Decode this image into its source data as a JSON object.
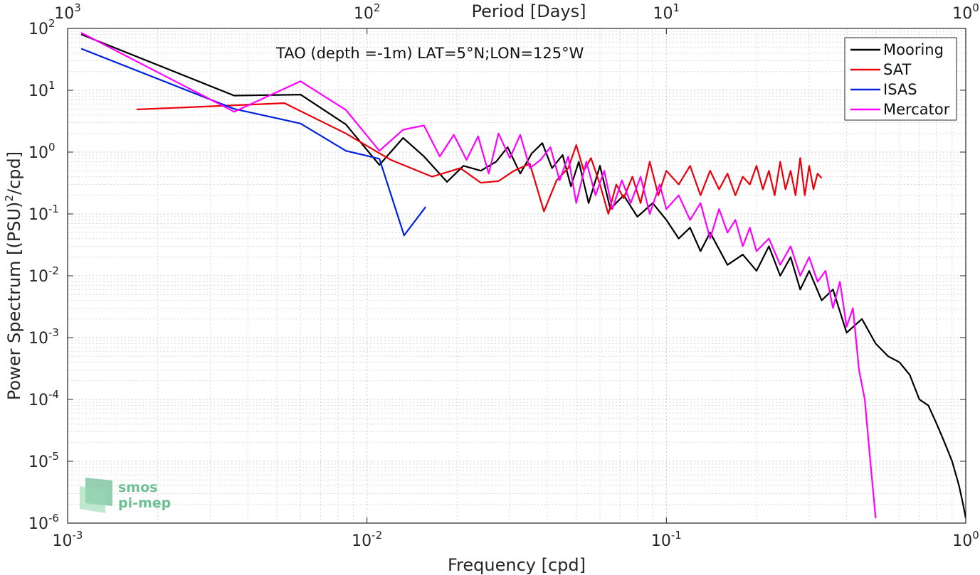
{
  "chart_data": {
    "type": "line",
    "annotation": "TAO (depth =-1m) LAT=5°N;LON=125°W",
    "xlabel": "Frequency [cpd]",
    "ylabel": "Power Spectrum [(PSU)",
    "ylabel_sup": "2",
    "ylabel_tail": "/cpd]",
    "top_xlabel": "Period [Days]",
    "x_scale": "log",
    "y_scale": "log",
    "xlim": [
      0.001,
      1
    ],
    "ylim": [
      1e-06,
      100
    ],
    "grid": true,
    "legend_position": "top-right",
    "x_ticks": [
      {
        "value": 0.001,
        "base": "10",
        "exp": "-3"
      },
      {
        "value": 0.01,
        "base": "10",
        "exp": "-2"
      },
      {
        "value": 0.1,
        "base": "10",
        "exp": "-1"
      },
      {
        "value": 1,
        "base": "10",
        "exp": "0"
      }
    ],
    "y_ticks": [
      {
        "value": 100,
        "base": "10",
        "exp": "2"
      },
      {
        "value": 10,
        "base": "10",
        "exp": "1"
      },
      {
        "value": 1,
        "base": "10",
        "exp": "0"
      },
      {
        "value": 0.1,
        "base": "10",
        "exp": "-1"
      },
      {
        "value": 0.01,
        "base": "10",
        "exp": "-2"
      },
      {
        "value": 0.001,
        "base": "10",
        "exp": "-3"
      },
      {
        "value": 0.0001,
        "base": "10",
        "exp": "-4"
      },
      {
        "value": 1e-05,
        "base": "10",
        "exp": "-5"
      },
      {
        "value": 1e-06,
        "base": "10",
        "exp": "-6"
      }
    ],
    "top_ticks": [
      {
        "freq": 0.001,
        "base": "10",
        "exp": "3"
      },
      {
        "freq": 0.01,
        "base": "10",
        "exp": "2"
      },
      {
        "freq": 0.1,
        "base": "10",
        "exp": "1"
      },
      {
        "freq": 1,
        "base": "10",
        "exp": "0"
      }
    ],
    "series": [
      {
        "name": "Mooring",
        "color": "#000000",
        "x": [
          0.00111,
          0.0036,
          0.006,
          0.0085,
          0.011,
          0.0132,
          0.0155,
          0.0185,
          0.021,
          0.024,
          0.027,
          0.0295,
          0.0325,
          0.0355,
          0.0385,
          0.0415,
          0.045,
          0.048,
          0.051,
          0.055,
          0.06,
          0.065,
          0.072,
          0.08,
          0.09,
          0.1,
          0.11,
          0.12,
          0.13,
          0.14,
          0.16,
          0.18,
          0.2,
          0.22,
          0.24,
          0.26,
          0.28,
          0.3,
          0.33,
          0.36,
          0.4,
          0.45,
          0.5,
          0.55,
          0.6,
          0.65,
          0.7,
          0.75,
          0.8,
          0.85,
          0.9,
          0.95,
          0.98,
          1.0
        ],
        "y": [
          80,
          8.2,
          8.5,
          2.8,
          0.62,
          1.7,
          0.85,
          0.33,
          0.6,
          0.5,
          0.7,
          1.2,
          0.45,
          0.95,
          1.4,
          0.55,
          0.9,
          0.28,
          0.7,
          0.15,
          0.6,
          0.12,
          0.2,
          0.09,
          0.15,
          0.08,
          0.04,
          0.06,
          0.025,
          0.05,
          0.015,
          0.022,
          0.012,
          0.03,
          0.01,
          0.02,
          0.006,
          0.012,
          0.004,
          0.006,
          0.0012,
          0.002,
          0.0008,
          0.0005,
          0.0004,
          0.00025,
          0.0001,
          8e-05,
          4e-05,
          2e-05,
          1e-05,
          4e-06,
          2e-06,
          1.2e-06
        ]
      },
      {
        "name": "SAT",
        "color": "#e8000b",
        "x": [
          0.0017,
          0.0053,
          0.0085,
          0.012,
          0.0165,
          0.0205,
          0.024,
          0.0275,
          0.031,
          0.035,
          0.039,
          0.043,
          0.047,
          0.05,
          0.053,
          0.056,
          0.06,
          0.064,
          0.068,
          0.072,
          0.077,
          0.082,
          0.088,
          0.094,
          0.1,
          0.11,
          0.12,
          0.13,
          0.14,
          0.15,
          0.16,
          0.17,
          0.18,
          0.19,
          0.2,
          0.21,
          0.22,
          0.23,
          0.24,
          0.25,
          0.26,
          0.27,
          0.28,
          0.29,
          0.3,
          0.31,
          0.32,
          0.33
        ],
        "y": [
          4.9,
          6.2,
          2.0,
          0.75,
          0.4,
          0.55,
          0.32,
          0.34,
          0.5,
          0.65,
          0.11,
          0.35,
          0.55,
          1.3,
          0.5,
          0.8,
          0.3,
          0.1,
          0.3,
          0.18,
          0.4,
          0.15,
          0.7,
          0.2,
          0.5,
          0.3,
          0.6,
          0.2,
          0.5,
          0.25,
          0.45,
          0.2,
          0.4,
          0.3,
          0.6,
          0.25,
          0.5,
          0.2,
          0.7,
          0.25,
          0.5,
          0.2,
          0.8,
          0.2,
          0.6,
          0.25,
          0.45,
          0.38
        ]
      },
      {
        "name": "ISAS",
        "color": "#0022e0",
        "x": [
          0.00111,
          0.0036,
          0.006,
          0.0085,
          0.011,
          0.0133,
          0.0157
        ],
        "y": [
          47,
          5.0,
          2.9,
          1.05,
          0.78,
          0.045,
          0.13
        ]
      },
      {
        "name": "Mercator",
        "color": "#ff00ff",
        "x": [
          0.00111,
          0.0036,
          0.006,
          0.0085,
          0.011,
          0.0132,
          0.0155,
          0.0175,
          0.0195,
          0.0215,
          0.0235,
          0.0255,
          0.0275,
          0.03,
          0.0325,
          0.035,
          0.038,
          0.041,
          0.044,
          0.047,
          0.05,
          0.054,
          0.058,
          0.062,
          0.066,
          0.071,
          0.076,
          0.082,
          0.088,
          0.095,
          0.1,
          0.11,
          0.12,
          0.13,
          0.14,
          0.15,
          0.16,
          0.17,
          0.18,
          0.19,
          0.2,
          0.22,
          0.24,
          0.26,
          0.28,
          0.3,
          0.32,
          0.34,
          0.36,
          0.38,
          0.4,
          0.42,
          0.44,
          0.46,
          0.48,
          0.5
        ],
        "y": [
          85,
          4.5,
          14,
          4.8,
          1.05,
          2.3,
          2.7,
          0.85,
          1.9,
          0.75,
          1.8,
          0.45,
          2.0,
          0.8,
          1.9,
          0.55,
          0.75,
          1.2,
          0.35,
          0.85,
          0.15,
          0.7,
          0.2,
          0.5,
          0.12,
          0.35,
          0.15,
          0.4,
          0.1,
          0.3,
          0.12,
          0.2,
          0.08,
          0.15,
          0.04,
          0.12,
          0.05,
          0.08,
          0.03,
          0.06,
          0.025,
          0.04,
          0.015,
          0.03,
          0.01,
          0.02,
          0.008,
          0.012,
          0.003,
          0.008,
          0.0015,
          0.003,
          0.0003,
          0.0001,
          1e-05,
          1.2e-06
        ]
      }
    ]
  },
  "logo": {
    "line1": "smos",
    "line2": "pi-mep",
    "color": "#6fbf95"
  }
}
